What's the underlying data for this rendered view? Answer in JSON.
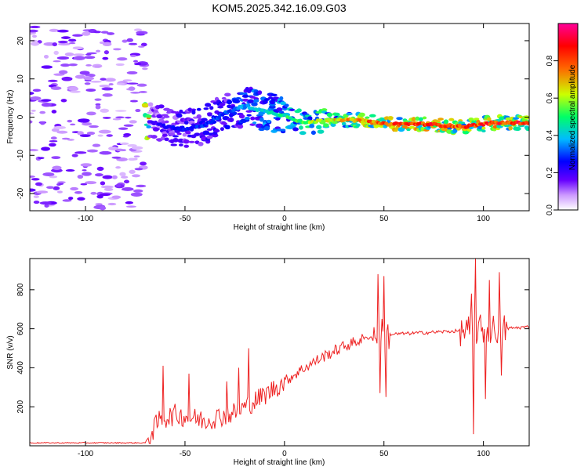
{
  "title": "KOM5.2025.342.16.09.G03",
  "top_chart": {
    "type": "heatmap",
    "xlabel": "Height of straight line (km)",
    "ylabel": "Frequency (Hz)",
    "xlim": [
      -128,
      123
    ],
    "ylim": [
      -24.5,
      24.5
    ],
    "x_ticks": [
      -100,
      -50,
      0,
      50,
      100
    ],
    "y_ticks": [
      -20,
      -10,
      0,
      10,
      20
    ],
    "colorbar": {
      "label": "Normalized spectral amplitude",
      "ticks": [
        "0.0",
        "0.2",
        "0.4",
        "0.6",
        "0.8"
      ],
      "tick_values": [
        0.0,
        0.2,
        0.4,
        0.6,
        0.8
      ],
      "range": [
        0,
        1
      ],
      "colors": [
        "#ffffff",
        "#cc99ff",
        "#6600ff",
        "#0000ff",
        "#00bbff",
        "#00ff66",
        "#ccff00",
        "#ff6600",
        "#ff0000",
        "#ff0099"
      ]
    },
    "ridge": [
      {
        "x": -68,
        "f": -1.0,
        "a": 0.18
      },
      {
        "x": -60,
        "f": -2.5,
        "a": 0.25
      },
      {
        "x": -50,
        "f": -3.0,
        "a": 0.28
      },
      {
        "x": -40,
        "f": -2.0,
        "a": 0.3
      },
      {
        "x": -30,
        "f": 1.0,
        "a": 0.32
      },
      {
        "x": -20,
        "f": 3.0,
        "a": 0.4
      },
      {
        "x": -10,
        "f": 1.5,
        "a": 0.45
      },
      {
        "x": 0,
        "f": 0.5,
        "a": 0.5
      },
      {
        "x": 10,
        "f": -1.5,
        "a": 0.6
      },
      {
        "x": 25,
        "f": -0.5,
        "a": 0.7
      },
      {
        "x": 40,
        "f": -1.0,
        "a": 0.8
      },
      {
        "x": 50,
        "f": -1.8,
        "a": 0.85
      },
      {
        "x": 70,
        "f": -1.8,
        "a": 0.9
      },
      {
        "x": 90,
        "f": -2.5,
        "a": 0.85
      },
      {
        "x": 105,
        "f": -1.5,
        "a": 0.9
      },
      {
        "x": 123,
        "f": -1.5,
        "a": 0.9
      }
    ]
  },
  "bottom_chart": {
    "type": "line",
    "xlabel": "Height of straight line (km)",
    "ylabel": "SNR (v/v)",
    "xlim": [
      -128,
      123
    ],
    "ylim": [
      0,
      960
    ],
    "x_ticks": [
      -100,
      -50,
      0,
      50,
      100
    ],
    "y_ticks": [
      200,
      400,
      600,
      800
    ],
    "line_color": "#ee2222",
    "trend": [
      {
        "x": -128,
        "y": 15
      },
      {
        "x": -70,
        "y": 15
      },
      {
        "x": -63,
        "y": 130
      },
      {
        "x": -55,
        "y": 160
      },
      {
        "x": -40,
        "y": 130
      },
      {
        "x": -25,
        "y": 170
      },
      {
        "x": -10,
        "y": 260
      },
      {
        "x": 0,
        "y": 330
      },
      {
        "x": 10,
        "y": 400
      },
      {
        "x": 20,
        "y": 460
      },
      {
        "x": 30,
        "y": 510
      },
      {
        "x": 40,
        "y": 550
      },
      {
        "x": 50,
        "y": 570
      },
      {
        "x": 60,
        "y": 575
      },
      {
        "x": 70,
        "y": 580
      },
      {
        "x": 80,
        "y": 585
      },
      {
        "x": 90,
        "y": 590
      },
      {
        "x": 100,
        "y": 595
      },
      {
        "x": 110,
        "y": 600
      },
      {
        "x": 123,
        "y": 610
      }
    ],
    "spikes": [
      {
        "x": -61,
        "y": 410
      },
      {
        "x": -48,
        "y": 370
      },
      {
        "x": -29,
        "y": 330
      },
      {
        "x": -23,
        "y": 400
      },
      {
        "x": -18,
        "y": 500
      },
      {
        "x": 47,
        "y": 880
      },
      {
        "x": 48,
        "y": 270
      },
      {
        "x": 50,
        "y": 870
      },
      {
        "x": 51,
        "y": 250
      },
      {
        "x": 94,
        "y": 780
      },
      {
        "x": 95,
        "y": 60
      },
      {
        "x": 96,
        "y": 960
      },
      {
        "x": 101,
        "y": 240
      },
      {
        "x": 103,
        "y": 850
      },
      {
        "x": 108,
        "y": 890
      },
      {
        "x": 109,
        "y": 360
      }
    ]
  }
}
